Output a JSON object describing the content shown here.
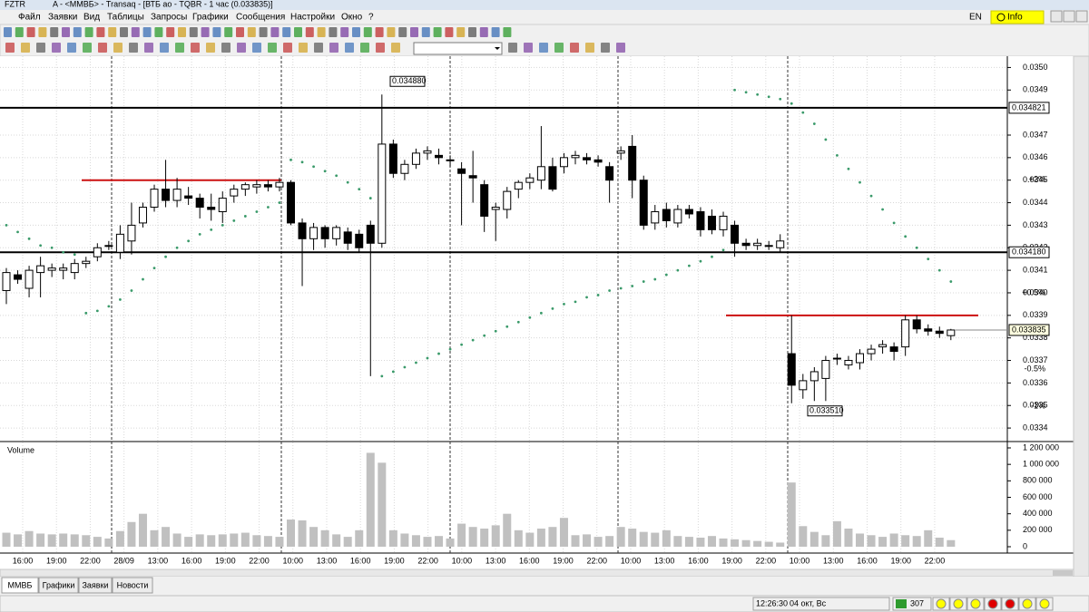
{
  "window": {
    "title_left": "FZTR",
    "title": "A - <ММВБ> - Transaq - [ВТБ ао - TQBR - 1 час (0.033835)]"
  },
  "menu": [
    "Файл",
    "Заявки",
    "Вид",
    "Таблицы",
    "Запросы",
    "Графики",
    "Сообщения",
    "Настройки",
    "Окно",
    "?"
  ],
  "language": "EN",
  "info": "Info",
  "chart_data": {
    "type": "candlestick",
    "ylim": [
      0.03334,
      0.03505
    ],
    "yticks": [
      {
        "value": 0.035,
        "label": "0.0350"
      },
      0.0349,
      0.0347,
      0.0346,
      0.0345,
      0.0344,
      0.0343,
      0.0342,
      0.0341,
      {
        "value": 0.034,
        "label": "0.0340"
      },
      0.0339,
      0.0338,
      0.0337,
      0.0336,
      0.0335,
      0.0334
    ],
    "grid": true,
    "up_color": "#ffffff",
    "down_color": "#000000",
    "sar_color": "#3a9a6a",
    "volume_color": "#c0c0c0",
    "level_color": "#000000",
    "red_color": "#cc1010",
    "ohlc": [
      [
        0.03401,
        0.03411,
        0.03395,
        0.03409
      ],
      [
        0.03408,
        0.0341,
        0.03404,
        0.03406
      ],
      [
        0.03402,
        0.03412,
        0.03398,
        0.0341
      ],
      [
        0.03409,
        0.03416,
        0.03398,
        0.03412
      ],
      [
        0.0341,
        0.03413,
        0.03407,
        0.03411
      ],
      [
        0.0341,
        0.03413,
        0.03406,
        0.03411
      ],
      [
        0.03409,
        0.03415,
        0.03406,
        0.03413
      ],
      [
        0.03413,
        0.03416,
        0.03411,
        0.03414
      ],
      [
        0.03416,
        0.03422,
        0.03414,
        0.0342
      ],
      [
        0.03421,
        0.03423,
        0.03419,
        0.03421
      ],
      [
        0.03418,
        0.0343,
        0.03415,
        0.03426
      ],
      [
        0.03423,
        0.0344,
        0.03417,
        0.0343
      ],
      [
        0.03431,
        0.0344,
        0.03429,
        0.03438
      ],
      [
        0.03438,
        0.03448,
        0.03436,
        0.03446
      ],
      [
        0.03446,
        0.03459,
        0.03438,
        0.03441
      ],
      [
        0.03441,
        0.03451,
        0.03438,
        0.03446
      ],
      [
        0.03443,
        0.03447,
        0.03439,
        0.03442
      ],
      [
        0.03442,
        0.03444,
        0.03433,
        0.03438
      ],
      [
        0.03438,
        0.03444,
        0.03432,
        0.03437
      ],
      [
        0.03436,
        0.03445,
        0.03431,
        0.03442
      ],
      [
        0.03443,
        0.03448,
        0.0344,
        0.03446
      ],
      [
        0.03446,
        0.03449,
        0.03443,
        0.03448
      ],
      [
        0.03447,
        0.0345,
        0.03444,
        0.03448
      ],
      [
        0.03448,
        0.0345,
        0.03445,
        0.03447
      ],
      [
        0.03447,
        0.03451,
        0.03445,
        0.03449
      ],
      [
        0.03449,
        0.0345,
        0.0343,
        0.03431
      ],
      [
        0.03431,
        0.03433,
        0.03403,
        0.03424
      ],
      [
        0.03424,
        0.03431,
        0.03419,
        0.03429
      ],
      [
        0.03429,
        0.0343,
        0.0342,
        0.03424
      ],
      [
        0.03424,
        0.0343,
        0.03421,
        0.03429
      ],
      [
        0.03427,
        0.03429,
        0.03419,
        0.03422
      ],
      [
        0.03426,
        0.03428,
        0.03418,
        0.0342
      ],
      [
        0.0343,
        0.03432,
        0.03363,
        0.03422
      ],
      [
        0.03422,
        0.03488,
        0.0342,
        0.03466
      ],
      [
        0.03466,
        0.03468,
        0.03451,
        0.03453
      ],
      [
        0.03453,
        0.03459,
        0.0345,
        0.03457
      ],
      [
        0.03457,
        0.03464,
        0.03455,
        0.03462
      ],
      [
        0.03462,
        0.03465,
        0.03459,
        0.03463
      ],
      [
        0.03461,
        0.03464,
        0.03457,
        0.0346
      ],
      [
        0.03459,
        0.03461,
        0.03456,
        0.03459
      ],
      [
        0.03455,
        0.03458,
        0.0343,
        0.03453
      ],
      [
        0.03452,
        0.03463,
        0.0344,
        0.03451
      ],
      [
        0.03448,
        0.0345,
        0.03427,
        0.03434
      ],
      [
        0.03437,
        0.0344,
        0.03423,
        0.03438
      ],
      [
        0.03437,
        0.03447,
        0.03433,
        0.03445
      ],
      [
        0.03446,
        0.0345,
        0.03442,
        0.03449
      ],
      [
        0.03449,
        0.03453,
        0.03446,
        0.03451
      ],
      [
        0.0345,
        0.03474,
        0.03446,
        0.03456
      ],
      [
        0.03456,
        0.0346,
        0.03445,
        0.03446
      ],
      [
        0.03456,
        0.03462,
        0.03453,
        0.0346
      ],
      [
        0.0346,
        0.03463,
        0.03457,
        0.03461
      ],
      [
        0.0346,
        0.03462,
        0.03457,
        0.03459
      ],
      [
        0.03459,
        0.03461,
        0.03456,
        0.03458
      ],
      [
        0.03456,
        0.03458,
        0.0344,
        0.0345
      ],
      [
        0.03462,
        0.03465,
        0.03459,
        0.03463
      ],
      [
        0.03465,
        0.0347,
        0.03442,
        0.0345
      ],
      [
        0.0345,
        0.03452,
        0.03428,
        0.0343
      ],
      [
        0.03431,
        0.03439,
        0.03428,
        0.03436
      ],
      [
        0.03437,
        0.0344,
        0.03429,
        0.03432
      ],
      [
        0.03431,
        0.03439,
        0.03429,
        0.03437
      ],
      [
        0.03437,
        0.03439,
        0.03433,
        0.03435
      ],
      [
        0.03436,
        0.03438,
        0.03425,
        0.03428
      ],
      [
        0.03434,
        0.03437,
        0.03426,
        0.03428
      ],
      [
        0.03428,
        0.03436,
        0.03425,
        0.03434
      ],
      [
        0.0343,
        0.03432,
        0.03416,
        0.03422
      ],
      [
        0.03422,
        0.03424,
        0.03419,
        0.03421
      ],
      [
        0.03421,
        0.03424,
        0.03419,
        0.03422
      ],
      [
        0.03421,
        0.03423,
        0.03419,
        0.03421
      ],
      [
        0.0342,
        0.03426,
        0.03418,
        0.03423
      ],
      [
        0.03373,
        0.0339,
        0.03351,
        0.03359
      ],
      [
        0.03357,
        0.03364,
        0.03353,
        0.03361
      ],
      [
        0.03361,
        0.03367,
        0.03352,
        0.03365
      ],
      [
        0.03362,
        0.03372,
        0.03352,
        0.0337
      ],
      [
        0.03371,
        0.03373,
        0.03368,
        0.03371
      ],
      [
        0.03368,
        0.03372,
        0.03366,
        0.0337
      ],
      [
        0.03369,
        0.03375,
        0.03366,
        0.03373
      ],
      [
        0.03373,
        0.03377,
        0.0337,
        0.03375
      ],
      [
        0.03376,
        0.03379,
        0.03373,
        0.03377
      ],
      [
        0.03376,
        0.03378,
        0.0337,
        0.03374
      ],
      [
        0.03376,
        0.0339,
        0.03372,
        0.03388
      ],
      [
        0.03388,
        0.0339,
        0.03382,
        0.03384
      ],
      [
        0.03384,
        0.03386,
        0.03381,
        0.03383
      ],
      [
        0.03383,
        0.03385,
        0.0338,
        0.03382
      ],
      [
        0.03381,
        0.03384,
        0.03379,
        0.033835
      ]
    ],
    "sar": [
      0.0343,
      0.03427,
      0.03424,
      0.03421,
      0.0342,
      0.03418,
      0.03417,
      0.03391,
      0.03392,
      0.03394,
      0.03397,
      0.03401,
      0.03406,
      0.03411,
      0.03416,
      0.0342,
      0.03423,
      0.03426,
      0.03428,
      0.0343,
      0.03432,
      0.03434,
      0.03436,
      0.03438,
      0.0344,
      0.03459,
      0.03458,
      0.03456,
      0.03454,
      0.03452,
      0.03449,
      0.03446,
      0.03442,
      0.03363,
      0.03365,
      0.03367,
      0.03369,
      0.03371,
      0.03373,
      0.03375,
      0.03377,
      0.03379,
      0.03381,
      0.03383,
      0.03385,
      0.03387,
      0.03389,
      0.03391,
      0.03393,
      0.03395,
      0.03396,
      0.03398,
      0.03399,
      0.03401,
      0.03402,
      0.03403,
      0.03405,
      0.03406,
      0.03408,
      0.0341,
      0.03412,
      0.03414,
      0.03416,
      0.03419,
      0.0349,
      0.03489,
      0.03488,
      0.03487,
      0.03486,
      0.03484,
      0.0348,
      0.03475,
      0.03468,
      0.03461,
      0.03455,
      0.03449,
      0.03443,
      0.03437,
      0.03431,
      0.03425,
      0.0342,
      0.03415,
      0.0341,
      0.03405
    ],
    "volume": {
      "label": "Volume",
      "ylim": [
        0,
        1200000
      ],
      "yticks": [
        0,
        {
          "value": 200000,
          "label": "200 000"
        },
        {
          "value": 400000,
          "label": "400 000"
        },
        {
          "value": 600000,
          "label": "600 000"
        },
        {
          "value": 800000,
          "label": "800 000"
        },
        {
          "value": 1000000,
          "label": "1 000 000"
        },
        {
          "value": 1200000,
          "label": "1 200 000"
        }
      ],
      "values": [
        170000,
        150000,
        190000,
        160000,
        150000,
        160000,
        150000,
        140000,
        120000,
        100000,
        190000,
        300000,
        400000,
        200000,
        240000,
        160000,
        120000,
        150000,
        140000,
        150000,
        160000,
        170000,
        140000,
        130000,
        120000,
        330000,
        320000,
        240000,
        200000,
        150000,
        120000,
        200000,
        1140000,
        1020000,
        200000,
        160000,
        140000,
        120000,
        130000,
        100000,
        280000,
        240000,
        220000,
        260000,
        400000,
        200000,
        170000,
        220000,
        240000,
        350000,
        140000,
        150000,
        120000,
        130000,
        240000,
        220000,
        180000,
        170000,
        200000,
        130000,
        120000,
        110000,
        130000,
        100000,
        90000,
        80000,
        70000,
        60000,
        50000,
        780000,
        250000,
        180000,
        140000,
        310000,
        220000,
        160000,
        140000,
        120000,
        160000,
        140000,
        130000,
        200000,
        110000,
        80000
      ]
    },
    "levels": [
      {
        "value": 0.034821,
        "label": "0.034821"
      },
      {
        "value": 0.03418,
        "label": "0.034180"
      }
    ],
    "red_levels": [
      0.0345,
      0.0339
    ],
    "last_price": {
      "value": 0.033835,
      "label": "0.033835"
    },
    "annotations": [
      {
        "value": 0.03488,
        "label": "0.034880"
      },
      {
        "value": 0.03351,
        "label": "0.033510"
      }
    ],
    "percent_labels": [
      "+2%",
      "+0.5%",
      "-0.5%",
      "-1%"
    ],
    "percent_colors": [
      "#2e8b2e",
      "#2e8b2e",
      "#b03030",
      "#b03030"
    ],
    "x_labels": [
      "16:00",
      "19:00",
      "22:00",
      "28/09",
      "13:00",
      "16:00",
      "19:00",
      "22:00",
      "10:00",
      "13:00",
      "16:00",
      "19:00",
      "22:00",
      "10:00",
      "13:00",
      "16:00",
      "19:00",
      "22:00",
      "10:00",
      "13:00",
      "16:00",
      "19:00",
      "22:00",
      "10:00",
      "13:00",
      "16:00",
      "19:00",
      "22:00"
    ]
  },
  "tabs": [
    "ММВБ",
    "Графики",
    "Заявки",
    "Новости"
  ],
  "status": {
    "time": "12:26:30",
    "date": "04 окт, Вс",
    "count": 307
  }
}
